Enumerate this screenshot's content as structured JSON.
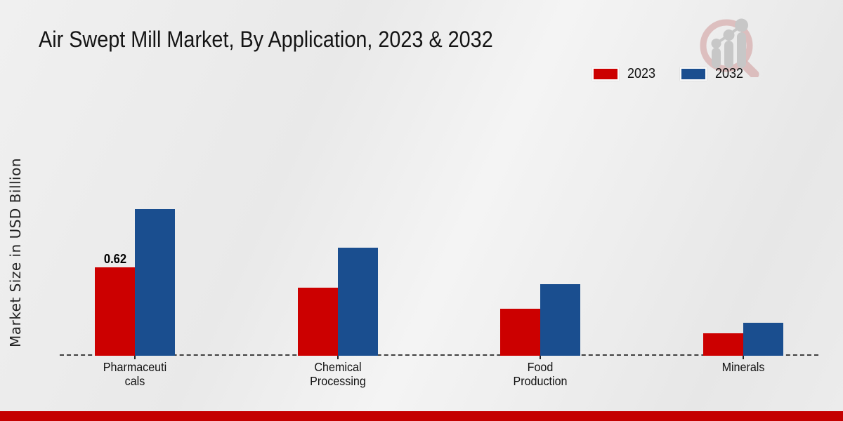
{
  "page": {
    "title": "Air Swept Mill Market, By Application, 2023 & 2032",
    "footer_color": "#c40000",
    "accent_red": "#cc0000",
    "accent_blue": "#1a4e8f"
  },
  "ylabel": "Market Size in USD Billion",
  "legend": {
    "items": [
      {
        "label": "2023",
        "color": "#cc0000"
      },
      {
        "label": "2032",
        "color": "#1a4e8f"
      }
    ]
  },
  "logo": {
    "name": "magnifier-growth-chart-logo"
  },
  "chart_data": {
    "type": "bar",
    "title": "Air Swept Mill Market, By Application, 2023 & 2032",
    "xlabel": "",
    "ylabel": "Market Size in USD Billion",
    "categories": [
      "Pharmaceuticals",
      "Chemical Processing",
      "Food Production",
      "Minerals"
    ],
    "category_label_lines": [
      [
        "Pharmaceuti",
        "cals"
      ],
      [
        "Chemical",
        "Processing"
      ],
      [
        "Food",
        "Production"
      ],
      [
        "Minerals"
      ]
    ],
    "series": [
      {
        "name": "2023",
        "color": "#cc0000",
        "values": [
          0.62,
          0.48,
          0.33,
          0.16
        ]
      },
      {
        "name": "2032",
        "color": "#1a4e8f",
        "values": [
          1.03,
          0.76,
          0.5,
          0.23
        ]
      }
    ],
    "bar_labels": [
      {
        "series_index": 0,
        "category_index": 0,
        "text": "0.62"
      }
    ],
    "ylim": [
      0,
      1.2
    ],
    "grid": false,
    "baseline_style": "dashed",
    "legend_position": "top-right"
  }
}
